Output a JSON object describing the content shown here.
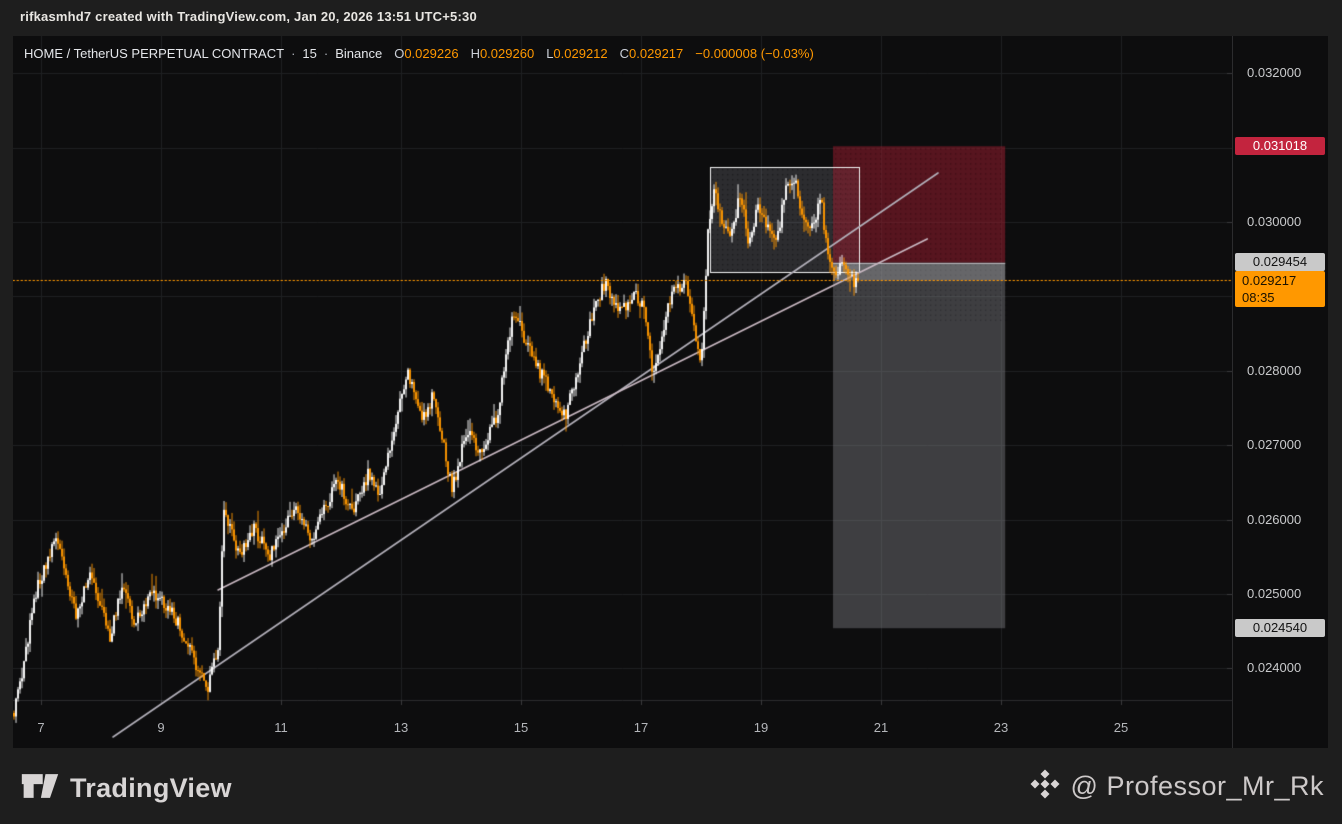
{
  "attribution": "rifkasmhd7 created with TradingView.com, Jan 20, 2026 13:51 UTC+5:30",
  "legend": {
    "symbol": "HOME / TetherUS PERPETUAL CONTRACT",
    "separator": "·",
    "interval": "15",
    "exchange": "Binance",
    "ohlc": [
      {
        "label": "O",
        "value": "0.029226"
      },
      {
        "label": "H",
        "value": "0.029260"
      },
      {
        "label": "L",
        "value": "0.029212"
      },
      {
        "label": "C",
        "value": "0.029217"
      }
    ],
    "change": "−0.000008 (−0.03%)"
  },
  "footer": {
    "tradingview_label": "TradingView",
    "watermark": "@ Professor_Mr_Rk"
  },
  "colors": {
    "page_bg": "#1e1e1e",
    "pane_bg": "#0d0d0e",
    "grid": "#1f2022",
    "axis_line": "#2c2c2e",
    "tick": "#3a3a3c",
    "candle_up": "#ffffff",
    "candle_down": "#ff9800",
    "current_price_line": "#ff9800",
    "stop_fill": "rgba(150,30,45,0.55)",
    "target_fill": "rgba(138,138,142,0.40)",
    "pnl_strip_fill": "rgba(195,195,200,0.30)",
    "entry_line": "rgba(205,205,210,0.75)",
    "box_fill": "rgba(170,172,180,0.20)",
    "box_border": "#f2f2f2",
    "trendline_a": "#b3b0ba",
    "trendline_b": "#c9b8c2",
    "stop_badge_bg": "#c3243e",
    "neutral_badge_bg": "#c9c9c9",
    "last_badge_bg": "#ff9800"
  },
  "chart_data": {
    "type": "candlestick",
    "title": "HOME / TetherUS PERPETUAL CONTRACT · 15 · Binance",
    "symbol": "HOME/TetherUS",
    "interval_minutes": 15,
    "exchange": "Binance",
    "last_ohlc": {
      "open": 0.029226,
      "high": 0.02926,
      "low": 0.029212,
      "close": 0.029217,
      "change": -8e-06,
      "change_pct": -0.03
    },
    "current_price": 0.029217,
    "countdown": "08:35",
    "x_axis": {
      "unit": "day of Jan 2026",
      "labels": [
        7,
        9,
        11,
        13,
        15,
        17,
        19,
        21,
        23,
        25
      ]
    },
    "x_range": [
      6.533,
      26.85
    ],
    "y_axis": {
      "labels": [
        "0.032000",
        "0.030000",
        "0.028000",
        "0.027000",
        "0.026000",
        "0.025000",
        "0.024000"
      ],
      "grid_min": 0.024,
      "grid_max": 0.032,
      "grid_step": 0.001
    },
    "y_range": [
      0.023575,
      0.0325
    ],
    "grid": true,
    "price_badges": [
      {
        "type": "stop",
        "value": "0.031018",
        "price": 0.031018
      },
      {
        "type": "entry",
        "value": "0.029454",
        "price": 0.029454
      },
      {
        "type": "last",
        "value": "0.029217",
        "price": 0.029217,
        "time": "08:35"
      },
      {
        "type": "target",
        "value": "0.024540",
        "price": 0.02454
      }
    ],
    "short_position": {
      "entry": 0.029454,
      "stop": 0.031018,
      "target": 0.02454,
      "day_start": 20.2,
      "day_end": 23.07
    },
    "consolidation_box": {
      "day_start": 18.15,
      "day_end": 20.63,
      "price_top": 0.030739,
      "price_bottom": 0.029328
    },
    "trendlines": [
      {
        "name": "steep-support",
        "from": [
          8.2,
          0.023078
        ],
        "to": [
          21.95,
          0.030659
        ],
        "color_key": "trendline_a"
      },
      {
        "name": "shallow-support",
        "from": [
          9.95,
          0.025054
        ],
        "to": [
          21.77,
          0.029772
        ],
        "color_key": "trendline_b"
      }
    ],
    "price_path": [
      [
        6.55,
        0.0234
      ],
      [
        6.7,
        0.024
      ],
      [
        6.9,
        0.025
      ],
      [
        7.1,
        0.0254
      ],
      [
        7.27,
        0.0258
      ],
      [
        7.45,
        0.0251
      ],
      [
        7.6,
        0.0247
      ],
      [
        7.8,
        0.0253
      ],
      [
        8.0,
        0.0248
      ],
      [
        8.15,
        0.0244
      ],
      [
        8.35,
        0.0251
      ],
      [
        8.55,
        0.0246
      ],
      [
        8.8,
        0.025
      ],
      [
        9.05,
        0.0249
      ],
      [
        9.3,
        0.0246
      ],
      [
        9.55,
        0.0241
      ],
      [
        9.78,
        0.0237
      ],
      [
        9.95,
        0.0243
      ],
      [
        10.05,
        0.0261
      ],
      [
        10.3,
        0.0255
      ],
      [
        10.55,
        0.0259
      ],
      [
        10.8,
        0.0255
      ],
      [
        11.05,
        0.0259
      ],
      [
        11.25,
        0.0262
      ],
      [
        11.5,
        0.0257
      ],
      [
        11.75,
        0.0262
      ],
      [
        11.95,
        0.0265
      ],
      [
        12.2,
        0.0261
      ],
      [
        12.45,
        0.0266
      ],
      [
        12.65,
        0.0263
      ],
      [
        12.9,
        0.0273
      ],
      [
        13.1,
        0.028
      ],
      [
        13.35,
        0.0273
      ],
      [
        13.55,
        0.0277
      ],
      [
        13.85,
        0.0264
      ],
      [
        14.1,
        0.0272
      ],
      [
        14.35,
        0.0269
      ],
      [
        14.6,
        0.0274
      ],
      [
        14.87,
        0.0288
      ],
      [
        15.3,
        0.028
      ],
      [
        15.75,
        0.0274
      ],
      [
        16.1,
        0.0285
      ],
      [
        16.4,
        0.0292
      ],
      [
        16.6,
        0.0288
      ],
      [
        16.9,
        0.029
      ],
      [
        17.05,
        0.0289
      ],
      [
        17.2,
        0.0279
      ],
      [
        17.5,
        0.029
      ],
      [
        17.75,
        0.0292
      ],
      [
        18.0,
        0.0281
      ],
      [
        18.12,
        0.0299
      ],
      [
        18.22,
        0.0305
      ],
      [
        18.35,
        0.03
      ],
      [
        18.5,
        0.0298
      ],
      [
        18.65,
        0.0304
      ],
      [
        18.8,
        0.0297
      ],
      [
        18.95,
        0.0302
      ],
      [
        19.1,
        0.0299
      ],
      [
        19.25,
        0.0297
      ],
      [
        19.4,
        0.0304
      ],
      [
        19.55,
        0.0306
      ],
      [
        19.7,
        0.0301
      ],
      [
        19.85,
        0.0299
      ],
      [
        20.0,
        0.0303
      ],
      [
        20.12,
        0.0295
      ],
      [
        20.25,
        0.0293
      ],
      [
        20.38,
        0.0295
      ],
      [
        20.5,
        0.0292
      ],
      [
        20.62,
        0.029217
      ]
    ],
    "legend_position": "top-left"
  }
}
